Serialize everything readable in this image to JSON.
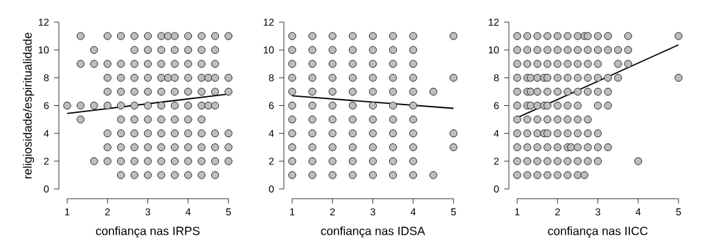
{
  "chart_data": [
    {
      "type": "scatter",
      "xlabel": "confiança nas IRPS",
      "ylabel": "religiosidade/espiritualidade",
      "xlim": [
        1,
        5
      ],
      "ylim": [
        0,
        12
      ],
      "xticks": [
        1,
        2,
        3,
        4,
        5
      ],
      "yticks": [
        0,
        2,
        4,
        6,
        8,
        10,
        12
      ],
      "series": [
        {
          "color": "#bebebe",
          "marker": "circle",
          "x": [
            1.333,
            2,
            2.333,
            2.667,
            3,
            3.333,
            3.5,
            3.667,
            4,
            4.333,
            4.667,
            5,
            1.667,
            2.667,
            3,
            3.333,
            3.667,
            4,
            4.333,
            4.667,
            1.333,
            1.667,
            2,
            2.333,
            2.667,
            3,
            3.333,
            3.667,
            4,
            4.333,
            4.667,
            2,
            2.333,
            2.667,
            3,
            3.333,
            3.5,
            3.667,
            4,
            4.333,
            4.5,
            4.667,
            5,
            2,
            2.333,
            2.667,
            3,
            3.333,
            3.667,
            4,
            4.333,
            4.667,
            5,
            1,
            1.333,
            1.667,
            2,
            2.333,
            2.667,
            3,
            3.333,
            3.667,
            4,
            4.333,
            4.5,
            4.667,
            1.333,
            2.333,
            2.667,
            3,
            3.333,
            3.667,
            4,
            4.333,
            2,
            2.333,
            2.667,
            3,
            3.333,
            3.667,
            4,
            4.333,
            4.667,
            5,
            2,
            2.333,
            2.667,
            3,
            3.333,
            3.667,
            4,
            4.333,
            4.667,
            5,
            1.667,
            2,
            2.333,
            2.667,
            3,
            3.333,
            3.667,
            4,
            4.333,
            4.667,
            5,
            2.333,
            2.667,
            3,
            3.333,
            3.667,
            4,
            4.333,
            4.667
          ],
          "values": [
            11,
            11,
            11,
            11,
            11,
            11,
            11,
            11,
            11,
            11,
            11,
            11,
            10,
            10,
            10,
            10,
            10,
            10,
            10,
            10,
            9,
            9,
            9,
            9,
            9,
            9,
            9,
            9,
            9,
            9,
            9,
            8,
            8,
            8,
            8,
            8,
            8,
            8,
            8,
            8,
            8,
            8,
            8,
            7,
            7,
            7,
            7,
            7,
            7,
            7,
            7,
            7,
            7,
            6,
            6,
            6,
            6,
            6,
            6,
            6,
            6,
            6,
            6,
            6,
            6,
            6,
            5,
            5,
            5,
            5,
            5,
            5,
            5,
            5,
            4,
            4,
            4,
            4,
            4,
            4,
            4,
            4,
            4,
            4,
            3,
            3,
            3,
            3,
            3,
            3,
            3,
            3,
            3,
            3,
            2,
            2,
            2,
            2,
            2,
            2,
            2,
            2,
            2,
            2,
            2,
            1,
            1,
            1,
            1,
            1,
            1,
            1,
            1
          ]
        },
        {
          "type": "line",
          "color": "#000000",
          "marker": "none",
          "x": [
            1,
            5
          ],
          "values": [
            5.43,
            6.83
          ]
        }
      ]
    },
    {
      "type": "scatter",
      "xlabel": "confiança nas IDSA",
      "xlim": [
        1,
        5
      ],
      "ylim": [
        0,
        12
      ],
      "xticks": [
        1,
        2,
        3,
        4,
        5
      ],
      "yticks": [
        0,
        2,
        4,
        6,
        8,
        10,
        12
      ],
      "series": [
        {
          "color": "#bebebe",
          "marker": "circle",
          "x": [
            1,
            1.5,
            2,
            2.5,
            3,
            3.5,
            4,
            5,
            1,
            1.5,
            2,
            2.5,
            3,
            3.5,
            4,
            1,
            1.5,
            2,
            2.5,
            3,
            3.5,
            4,
            1,
            1.5,
            2,
            2.5,
            3,
            3.5,
            4,
            5,
            1,
            1.5,
            2,
            2.5,
            3,
            3.5,
            4,
            4.5,
            1,
            1.5,
            2,
            2.5,
            3,
            3.5,
            4,
            1,
            1.5,
            2,
            2.5,
            3,
            3.5,
            4,
            1,
            1.5,
            2,
            2.5,
            3,
            3.5,
            4,
            5,
            1,
            1.5,
            2,
            2.5,
            3,
            3.5,
            4,
            5,
            1,
            1.5,
            2,
            2.5,
            3,
            3.5,
            4,
            1,
            1.5,
            2,
            2.5,
            3,
            3.5,
            4,
            4.5
          ],
          "values": [
            11,
            11,
            11,
            11,
            11,
            11,
            11,
            11,
            10,
            10,
            10,
            10,
            10,
            10,
            10,
            9,
            9,
            9,
            9,
            9,
            9,
            9,
            8,
            8,
            8,
            8,
            8,
            8,
            8,
            8,
            7,
            7,
            7,
            7,
            7,
            7,
            7,
            7,
            6,
            6,
            6,
            6,
            6,
            6,
            6,
            5,
            5,
            5,
            5,
            5,
            5,
            5,
            4,
            4,
            4,
            4,
            4,
            4,
            4,
            4,
            3,
            3,
            3,
            3,
            3,
            3,
            3,
            3,
            2,
            2,
            2,
            2,
            2,
            2,
            2,
            1,
            1,
            1,
            1,
            1,
            1,
            1,
            1
          ]
        },
        {
          "type": "line",
          "color": "#000000",
          "marker": "none",
          "x": [
            1,
            5
          ],
          "values": [
            6.7,
            5.8
          ]
        }
      ]
    },
    {
      "type": "scatter",
      "xlabel": "confiança nas IICC",
      "xlim": [
        1,
        5
      ],
      "ylim": [
        0,
        12
      ],
      "xticks": [
        1,
        2,
        3,
        4,
        5
      ],
      "yticks": [
        0,
        2,
        4,
        6,
        8,
        10,
        12
      ],
      "series": [
        {
          "color": "#bebebe",
          "marker": "circle",
          "x": [
            1,
            1.25,
            1.5,
            1.75,
            2,
            2.25,
            2.5,
            2.667,
            2.75,
            3,
            3.25,
            3.75,
            5,
            1,
            1.25,
            1.5,
            1.75,
            2,
            2.25,
            2.5,
            2.75,
            3,
            3.25,
            3.5,
            3.75,
            1,
            1.25,
            1.5,
            1.75,
            2,
            2.25,
            2.5,
            2.75,
            3,
            3.5,
            3.75,
            1,
            1.25,
            1.333,
            1.5,
            1.667,
            1.75,
            2,
            2.25,
            2.5,
            2.75,
            3,
            3.25,
            3.5,
            5,
            1,
            1.25,
            1.333,
            1.5,
            1.75,
            2,
            2.25,
            2.5,
            2.75,
            3,
            3.25,
            1,
            1.25,
            1.333,
            1.5,
            1.667,
            1.75,
            2,
            2.25,
            2.5,
            3,
            3.25,
            1,
            1.25,
            1.5,
            1.75,
            2,
            2.25,
            2.5,
            2.75,
            1,
            1.25,
            1.5,
            1.667,
            1.75,
            2,
            2.25,
            2.5,
            2.75,
            3,
            1,
            1.25,
            1.5,
            1.75,
            2,
            2.25,
            2.333,
            2.5,
            2.75,
            3,
            3.25,
            1,
            1.25,
            1.5,
            1.75,
            2,
            2.25,
            2.5,
            2.75,
            3,
            4,
            1,
            1.25,
            1.5,
            1.75,
            2,
            2.25,
            2.5,
            2.667
          ],
          "values": [
            11,
            11,
            11,
            11,
            11,
            11,
            11,
            11,
            11,
            11,
            11,
            11,
            11,
            10,
            10,
            10,
            10,
            10,
            10,
            10,
            10,
            10,
            10,
            10,
            10,
            9,
            9,
            9,
            9,
            9,
            9,
            9,
            9,
            9,
            9,
            9,
            8,
            8,
            8,
            8,
            8,
            8,
            8,
            8,
            8,
            8,
            8,
            8,
            8,
            8,
            7,
            7,
            7,
            7,
            7,
            7,
            7,
            7,
            7,
            7,
            7,
            6,
            6,
            6,
            6,
            6,
            6,
            6,
            6,
            6,
            6,
            6,
            5,
            5,
            5,
            5,
            5,
            5,
            5,
            5,
            4,
            4,
            4,
            4,
            4,
            4,
            4,
            4,
            4,
            4,
            3,
            3,
            3,
            3,
            3,
            3,
            3,
            3,
            3,
            3,
            3,
            2,
            2,
            2,
            2,
            2,
            2,
            2,
            2,
            2,
            2,
            1,
            1,
            1,
            1,
            1,
            1,
            1,
            1
          ]
        },
        {
          "type": "line",
          "color": "#000000",
          "marker": "none",
          "x": [
            1,
            5
          ],
          "values": [
            5.13,
            10.37
          ]
        }
      ]
    }
  ]
}
